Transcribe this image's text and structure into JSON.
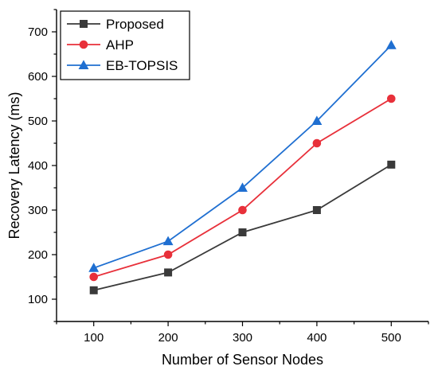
{
  "chart_data": {
    "type": "line",
    "title": "",
    "xlabel": "Number of Sensor Nodes",
    "ylabel": "Recovery Latency (ms)",
    "x": [
      100,
      200,
      300,
      400,
      500
    ],
    "x_ticks": [
      "100",
      "200",
      "300",
      "400",
      "500"
    ],
    "y_ticks": [
      "100",
      "200",
      "300",
      "400",
      "500",
      "600",
      "700"
    ],
    "xlim": [
      50,
      550
    ],
    "ylim": [
      50,
      750
    ],
    "grid": false,
    "legend_position": "top-left",
    "series": [
      {
        "name": "Proposed",
        "values": [
          120,
          160,
          250,
          300,
          402
        ],
        "color": "#3a3a3a",
        "marker": "square"
      },
      {
        "name": "AHP",
        "values": [
          150,
          200,
          300,
          450,
          550
        ],
        "color": "#e8303a",
        "marker": "circle"
      },
      {
        "name": "EB-TOPSIS",
        "values": [
          170,
          230,
          350,
          500,
          670
        ],
        "color": "#1f6fd1",
        "marker": "triangle"
      }
    ]
  }
}
